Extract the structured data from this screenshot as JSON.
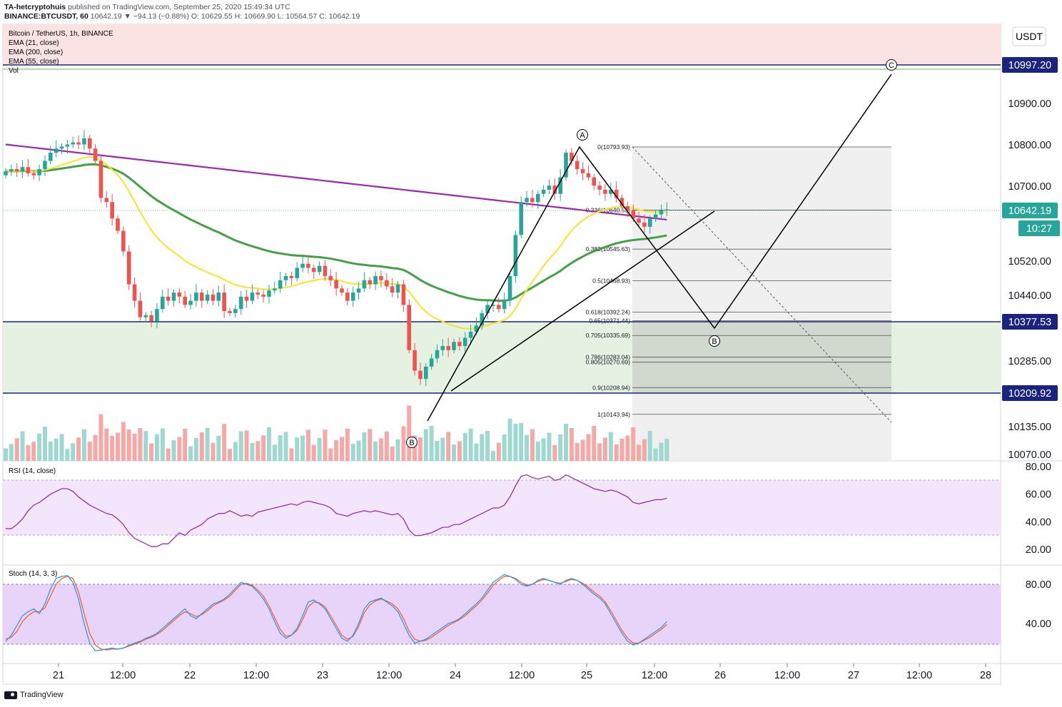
{
  "header": {
    "author": "TA-hetcryptohuis",
    "published": "published on TradingView.com, September 25, 2020 15:49:34 UTC",
    "symbol_line": "BINANCE:BTCUSDT, 60",
    "ohlc": "10642.19 ▼ −94.13 (−0.88%) O: 10629.55 H: 10669.90 L: 10564.57 C: 10642.19"
  },
  "legend": {
    "title": "Bitcoin / TetherUS, 1h, BINANCE",
    "ema21": "EMA (21, close)",
    "ema200": "EMA (200, close)",
    "ema55": "EMA (55, close)",
    "vol": "Vol",
    "rsi": "RSI (14, close)",
    "stoch": "Stoch (14, 3, 3)"
  },
  "footer": {
    "brand": "TradingView"
  },
  "currency_button": "USDT",
  "colors": {
    "up": "#26a69a",
    "down": "#ef5350",
    "ema21": "#f5e42c",
    "ema55": "#43a047",
    "ema200": "#9c27b0",
    "hline": "#1a237e",
    "rsi": "#8e24aa",
    "stoch_k": "#2196f3",
    "stoch_d": "#ff5722",
    "resistance_zone": "#fbe3e3",
    "support_zone": "#e6f2e1"
  },
  "chart_data": [
    {
      "type": "candlestick",
      "title": "Bitcoin / TetherUS, 1h, BINANCE",
      "y_ticks": [
        "10900.00",
        "10800.00",
        "10700.00",
        "10520.00",
        "10440.00",
        "10285.00",
        "10135.00",
        "10070.00"
      ],
      "x_ticks": [
        "21",
        "12:00",
        "22",
        "12:00",
        "23",
        "12:00",
        "24",
        "12:00",
        "25",
        "12:00",
        "26",
        "12:00",
        "27",
        "12:00",
        "28"
      ],
      "price_labels": [
        {
          "text": "10997.20",
          "role": "resistance-line"
        },
        {
          "text": "10642.19",
          "role": "last-price"
        },
        {
          "text": "10:27",
          "role": "bar-countdown"
        },
        {
          "text": "10377.53",
          "role": "support-line"
        },
        {
          "text": "10209.92",
          "role": "support-line"
        }
      ],
      "horizontal_lines": [
        10997.2,
        10377.53,
        10209.92
      ],
      "zones": [
        {
          "name": "resistance",
          "from": 10997.2,
          "to": 11100
        },
        {
          "name": "support",
          "from": 10209.92,
          "to": 10377.53
        }
      ],
      "ohlc_close_series": [
        10735,
        10740,
        10735,
        10745,
        10730,
        10725,
        10740,
        10760,
        10780,
        10790,
        10795,
        10800,
        10805,
        10800,
        10815,
        10790,
        10760,
        10670,
        10660,
        10620,
        10590,
        10540,
        10460,
        10420,
        10380,
        10385,
        10370,
        10400,
        10430,
        10420,
        10440,
        10430,
        10410,
        10420,
        10440,
        10420,
        10435,
        10420,
        10440,
        10395,
        10390,
        10400,
        10430,
        10420,
        10440,
        10435,
        10430,
        10445,
        10450,
        10470,
        10480,
        10475,
        10500,
        10510,
        10500,
        10490,
        10505,
        10480,
        10470,
        10450,
        10440,
        10420,
        10440,
        10450,
        10470,
        10460,
        10480,
        10470,
        10455,
        10440,
        10460,
        10410,
        10300,
        10250,
        10230,
        10260,
        10280,
        10300,
        10310,
        10300,
        10320,
        10310,
        10330,
        10345,
        10360,
        10390,
        10410,
        10410,
        10400,
        10420,
        10480,
        10580,
        10660,
        10670,
        10660,
        10680,
        10690,
        10700,
        10680,
        10720,
        10780,
        10760,
        10740,
        10730,
        10720,
        10700,
        10690,
        10680,
        10690,
        10670,
        10650,
        10640,
        10620,
        10610,
        10600,
        10620,
        10630,
        10640,
        10642.19
      ],
      "fibonacci": [
        {
          "text": "0(10793.93)",
          "level": 10793.93
        },
        {
          "text": "0.236(10640.53)",
          "level": 10640.53
        },
        {
          "text": "0.382(10545.63)",
          "level": 10545.63
        },
        {
          "text": "0.5(10468.93)",
          "level": 10468.93
        },
        {
          "text": "0.618(10392.24)",
          "level": 10392.24
        },
        {
          "text": "0.65(10371.44)",
          "level": 10371.44
        },
        {
          "text": "0.705(10335.69)",
          "level": 10335.69
        },
        {
          "text": "0.786(10283.04)",
          "level": 10283.04
        },
        {
          "text": "0.805(10270.69)",
          "level": 10270.69
        },
        {
          "text": "0.9(10208.94)",
          "level": 10208.94
        },
        {
          "text": "1(10143.94)",
          "level": 10143.94
        }
      ],
      "wave_labels": [
        "A",
        "B",
        "B",
        "C"
      ]
    },
    {
      "type": "line",
      "title": "RSI (14, close)",
      "y_ticks": [
        "80.00",
        "60.00",
        "40.00",
        "20.00"
      ],
      "band": [
        30,
        70
      ],
      "values": [
        35,
        35,
        38,
        42,
        48,
        52,
        54,
        57,
        60,
        62,
        64,
        64,
        62,
        58,
        55,
        52,
        50,
        48,
        46,
        45,
        42,
        38,
        32,
        28,
        26,
        24,
        22,
        22,
        24,
        24,
        28,
        32,
        30,
        34,
        36,
        38,
        42,
        44,
        46,
        46,
        48,
        46,
        44,
        45,
        44,
        47,
        48,
        49,
        50,
        51,
        52,
        53,
        52,
        54,
        55,
        54,
        53,
        52,
        50,
        46,
        45,
        44,
        46,
        47,
        48,
        47,
        48,
        47,
        46,
        45,
        46,
        42,
        34,
        30,
        30,
        31,
        32,
        34,
        36,
        36,
        38,
        38,
        40,
        42,
        44,
        46,
        48,
        50,
        50,
        52,
        58,
        66,
        73,
        74,
        72,
        71,
        72,
        73,
        70,
        71,
        74,
        72,
        70,
        68,
        66,
        64,
        63,
        62,
        63,
        62,
        60,
        58,
        54,
        53,
        54,
        55,
        56,
        56,
        57
      ]
    },
    {
      "type": "line",
      "title": "Stoch (14, 3, 3)",
      "y_ticks": [
        "80.00",
        "40.00"
      ],
      "band": [
        20,
        80
      ],
      "series": [
        {
          "name": "%K",
          "values": [
            22,
            28,
            38,
            48,
            52,
            55,
            50,
            60,
            75,
            86,
            88,
            89,
            82,
            65,
            40,
            20,
            12,
            13,
            14,
            15,
            14,
            15,
            18,
            20,
            22,
            25,
            27,
            30,
            35,
            40,
            45,
            50,
            55,
            48,
            45,
            50,
            55,
            60,
            62,
            65,
            70,
            76,
            82,
            80,
            78,
            72,
            65,
            55,
            42,
            30,
            25,
            28,
            35,
            48,
            62,
            64,
            60,
            55,
            45,
            35,
            25,
            22,
            28,
            40,
            55,
            62,
            64,
            66,
            62,
            58,
            52,
            40,
            28,
            20,
            22,
            24,
            28,
            32,
            36,
            40,
            42,
            45,
            50,
            55,
            60,
            66,
            74,
            82,
            86,
            90,
            88,
            85,
            80,
            78,
            80,
            84,
            86,
            84,
            82,
            80,
            84,
            86,
            84,
            80,
            75,
            70,
            66,
            60,
            50,
            40,
            30,
            22,
            18,
            20,
            24,
            28,
            32,
            36,
            42
          ]
        },
        {
          "name": "%D",
          "values": [
            24,
            26,
            32,
            42,
            48,
            52,
            52,
            56,
            68,
            80,
            86,
            88,
            86,
            72,
            50,
            30,
            18,
            14,
            13,
            14,
            14,
            15,
            17,
            19,
            21,
            24,
            26,
            29,
            33,
            38,
            43,
            48,
            52,
            50,
            47,
            49,
            53,
            58,
            61,
            64,
            68,
            74,
            80,
            81,
            79,
            74,
            68,
            58,
            46,
            34,
            27,
            28,
            33,
            44,
            57,
            62,
            61,
            57,
            48,
            38,
            28,
            24,
            27,
            37,
            51,
            59,
            63,
            65,
            63,
            60,
            55,
            45,
            32,
            24,
            22,
            23,
            26,
            30,
            34,
            38,
            41,
            44,
            48,
            53,
            58,
            64,
            71,
            79,
            84,
            88,
            88,
            86,
            82,
            79,
            80,
            83,
            85,
            84,
            82,
            81,
            83,
            85,
            84,
            81,
            77,
            72,
            68,
            62,
            53,
            43,
            33,
            25,
            20,
            20,
            23,
            26,
            30,
            34,
            39
          ]
        }
      ]
    }
  ]
}
